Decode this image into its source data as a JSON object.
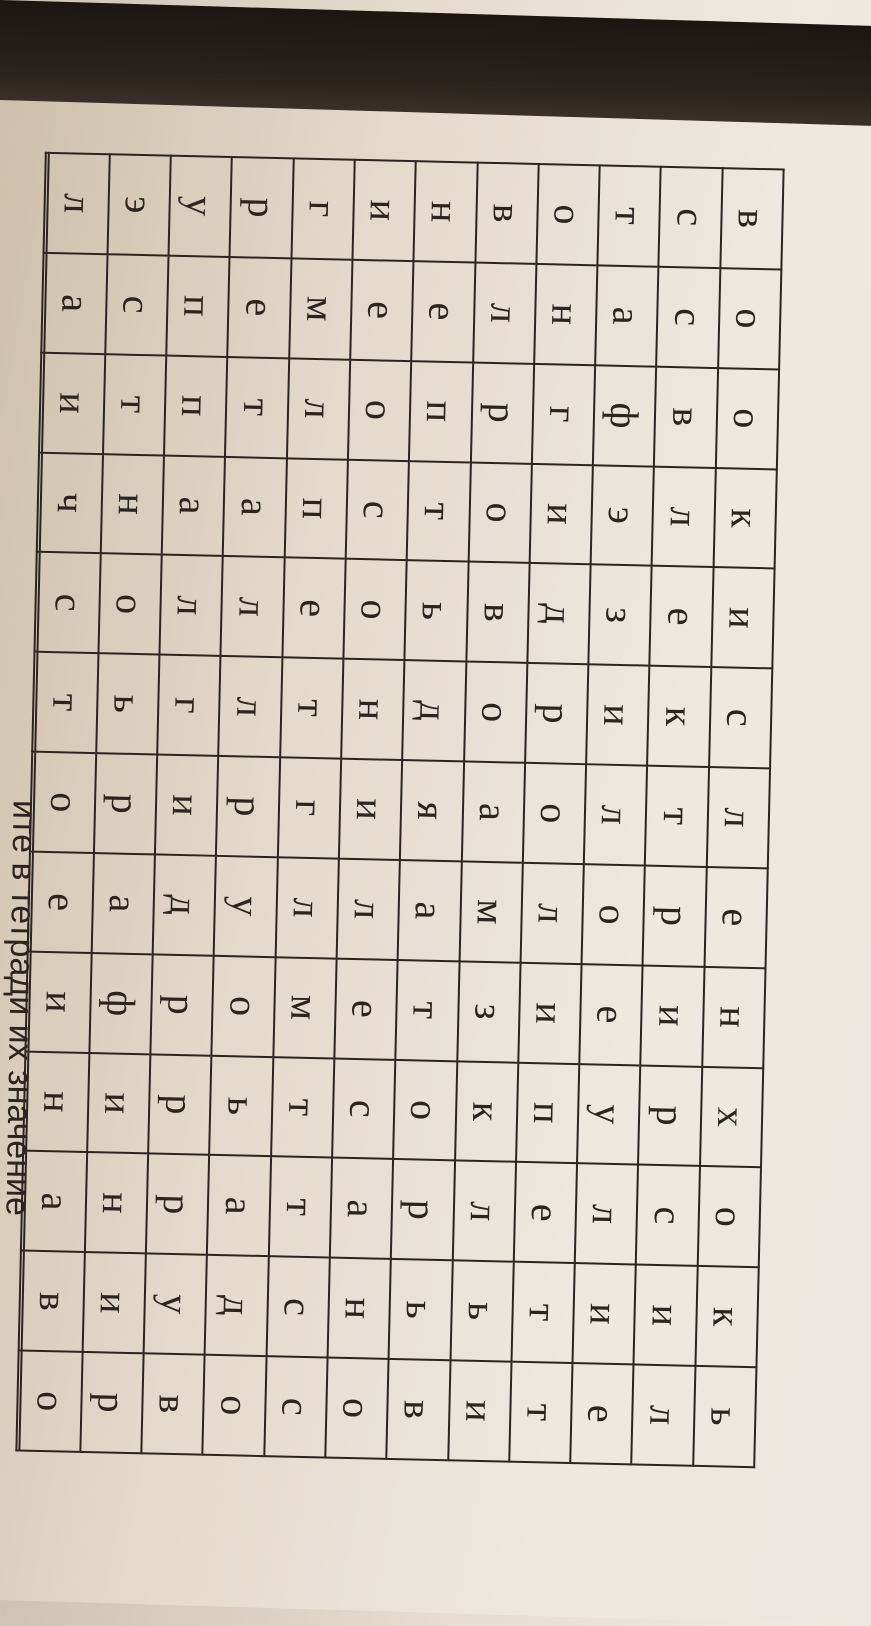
{
  "grid": {
    "rows": [
      [
        "в",
        "о",
        "о",
        "к",
        "и",
        "с",
        "л",
        "е",
        "н",
        "х",
        "о",
        "к",
        "ь"
      ],
      [
        "с",
        "с",
        "в",
        "л",
        "е",
        "к",
        "т",
        "р",
        "и",
        "р",
        "с",
        "и",
        "л"
      ],
      [
        "т",
        "а",
        "ф",
        "э",
        "з",
        "и",
        "л",
        "о",
        "е",
        "у",
        "л",
        "и",
        "е"
      ],
      [
        "о",
        "н",
        "г",
        "и",
        "д",
        "р",
        "о",
        "л",
        "и",
        "п",
        "е",
        "т",
        "т"
      ],
      [
        "в",
        "л",
        "р",
        "о",
        "в",
        "о",
        "а",
        "м",
        "з",
        "к",
        "л",
        "ь",
        "и"
      ],
      [
        "н",
        "е",
        "п",
        "т",
        "ь",
        "д",
        "я",
        "а",
        "т",
        "о",
        "р",
        "ь",
        "в"
      ],
      [
        "и",
        "е",
        "о",
        "с",
        "о",
        "н",
        "и",
        "л",
        "е",
        "с",
        "а",
        "н",
        "о"
      ],
      [
        "г",
        "м",
        "л",
        "п",
        "е",
        "т",
        "г",
        "л",
        "м",
        "т",
        "т",
        "с",
        "с"
      ],
      [
        "р",
        "е",
        "т",
        "а",
        "л",
        "л",
        "р",
        "у",
        "о",
        "ь",
        "а",
        "д",
        "о"
      ],
      [
        "у",
        "п",
        "п",
        "а",
        "л",
        "г",
        "и",
        "д",
        "р",
        "р",
        "р",
        "у",
        "в"
      ],
      [
        "э",
        "с",
        "т",
        "н",
        "о",
        "ь",
        "р",
        "а",
        "ф",
        "и",
        "н",
        "и",
        "р"
      ],
      [
        "л",
        "а",
        "и",
        "ч",
        "с",
        "т",
        "о",
        "е",
        "и",
        "н",
        "а",
        "в",
        "о"
      ],
      [
        "",
        "",
        "",
        "",
        "",
        "",
        "",
        "",
        "",
        "",
        "",
        "",
        ""
      ]
    ]
  },
  "caption": "ите в тетради их значение"
}
